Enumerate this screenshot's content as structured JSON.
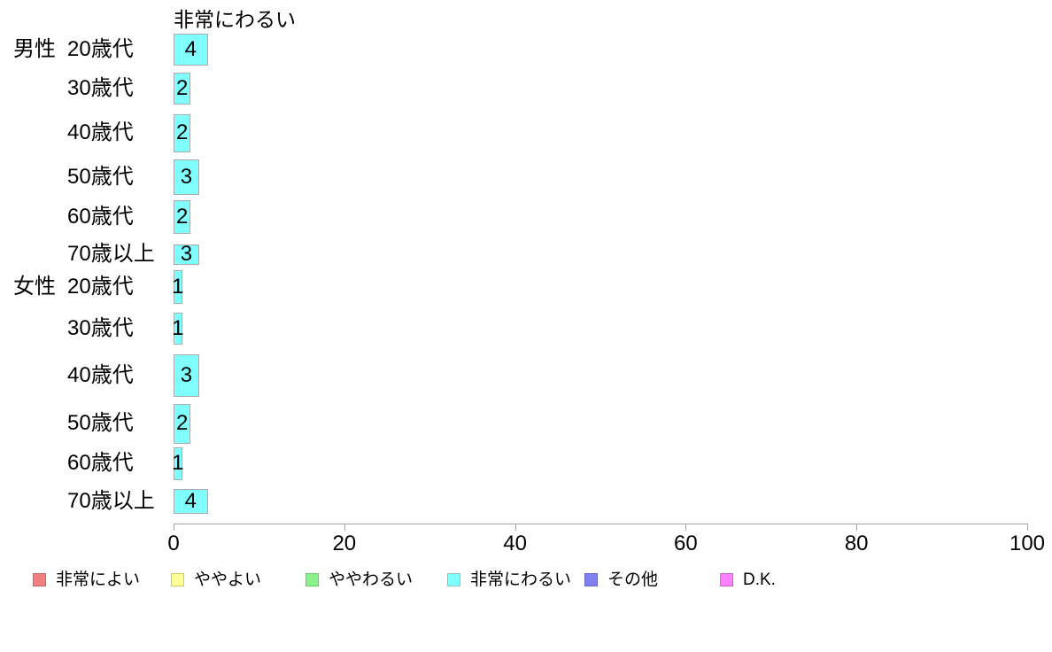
{
  "chart_data": {
    "type": "bar",
    "orientation": "horizontal",
    "title": "非常にわるい",
    "groups": [
      {
        "label": "男性",
        "start_row": 0
      },
      {
        "label": "女性",
        "start_row": 6
      }
    ],
    "categories": [
      "20歳代",
      "30歳代",
      "40歳代",
      "50歳代",
      "60歳代",
      "70歳以上",
      "20歳代",
      "30歳代",
      "40歳代",
      "50歳代",
      "60歳代",
      "70歳以上"
    ],
    "values": [
      4,
      2,
      2,
      3,
      2,
      3,
      1,
      1,
      3,
      2,
      1,
      4
    ],
    "xlim": [
      0,
      100
    ],
    "x_ticks": [
      0,
      20,
      40,
      60,
      80,
      100
    ],
    "grid": false,
    "legend_position": "bottom",
    "bar_fill": "#80FFFF",
    "bar_border": "#ABABAB",
    "axis_color": "#A3A3A3",
    "text_color": "#000000",
    "background": "#FFFFFF",
    "legend": [
      {
        "label": "非常によい",
        "fill": "#F08080",
        "border": "#CC6666"
      },
      {
        "label": "ややよい",
        "fill": "#FFFF99",
        "border": "#CCCC66"
      },
      {
        "label": "ややわるい",
        "fill": "#8CF08C",
        "border": "#66CC66"
      },
      {
        "label": "非常にわるい",
        "fill": "#80FFFF",
        "border": "#9EBEBE"
      },
      {
        "label": "その他",
        "fill": "#8080F0",
        "border": "#6666CC"
      },
      {
        "label": "D.K.",
        "fill": "#FF80FF",
        "border": "#CC66CC"
      }
    ]
  }
}
